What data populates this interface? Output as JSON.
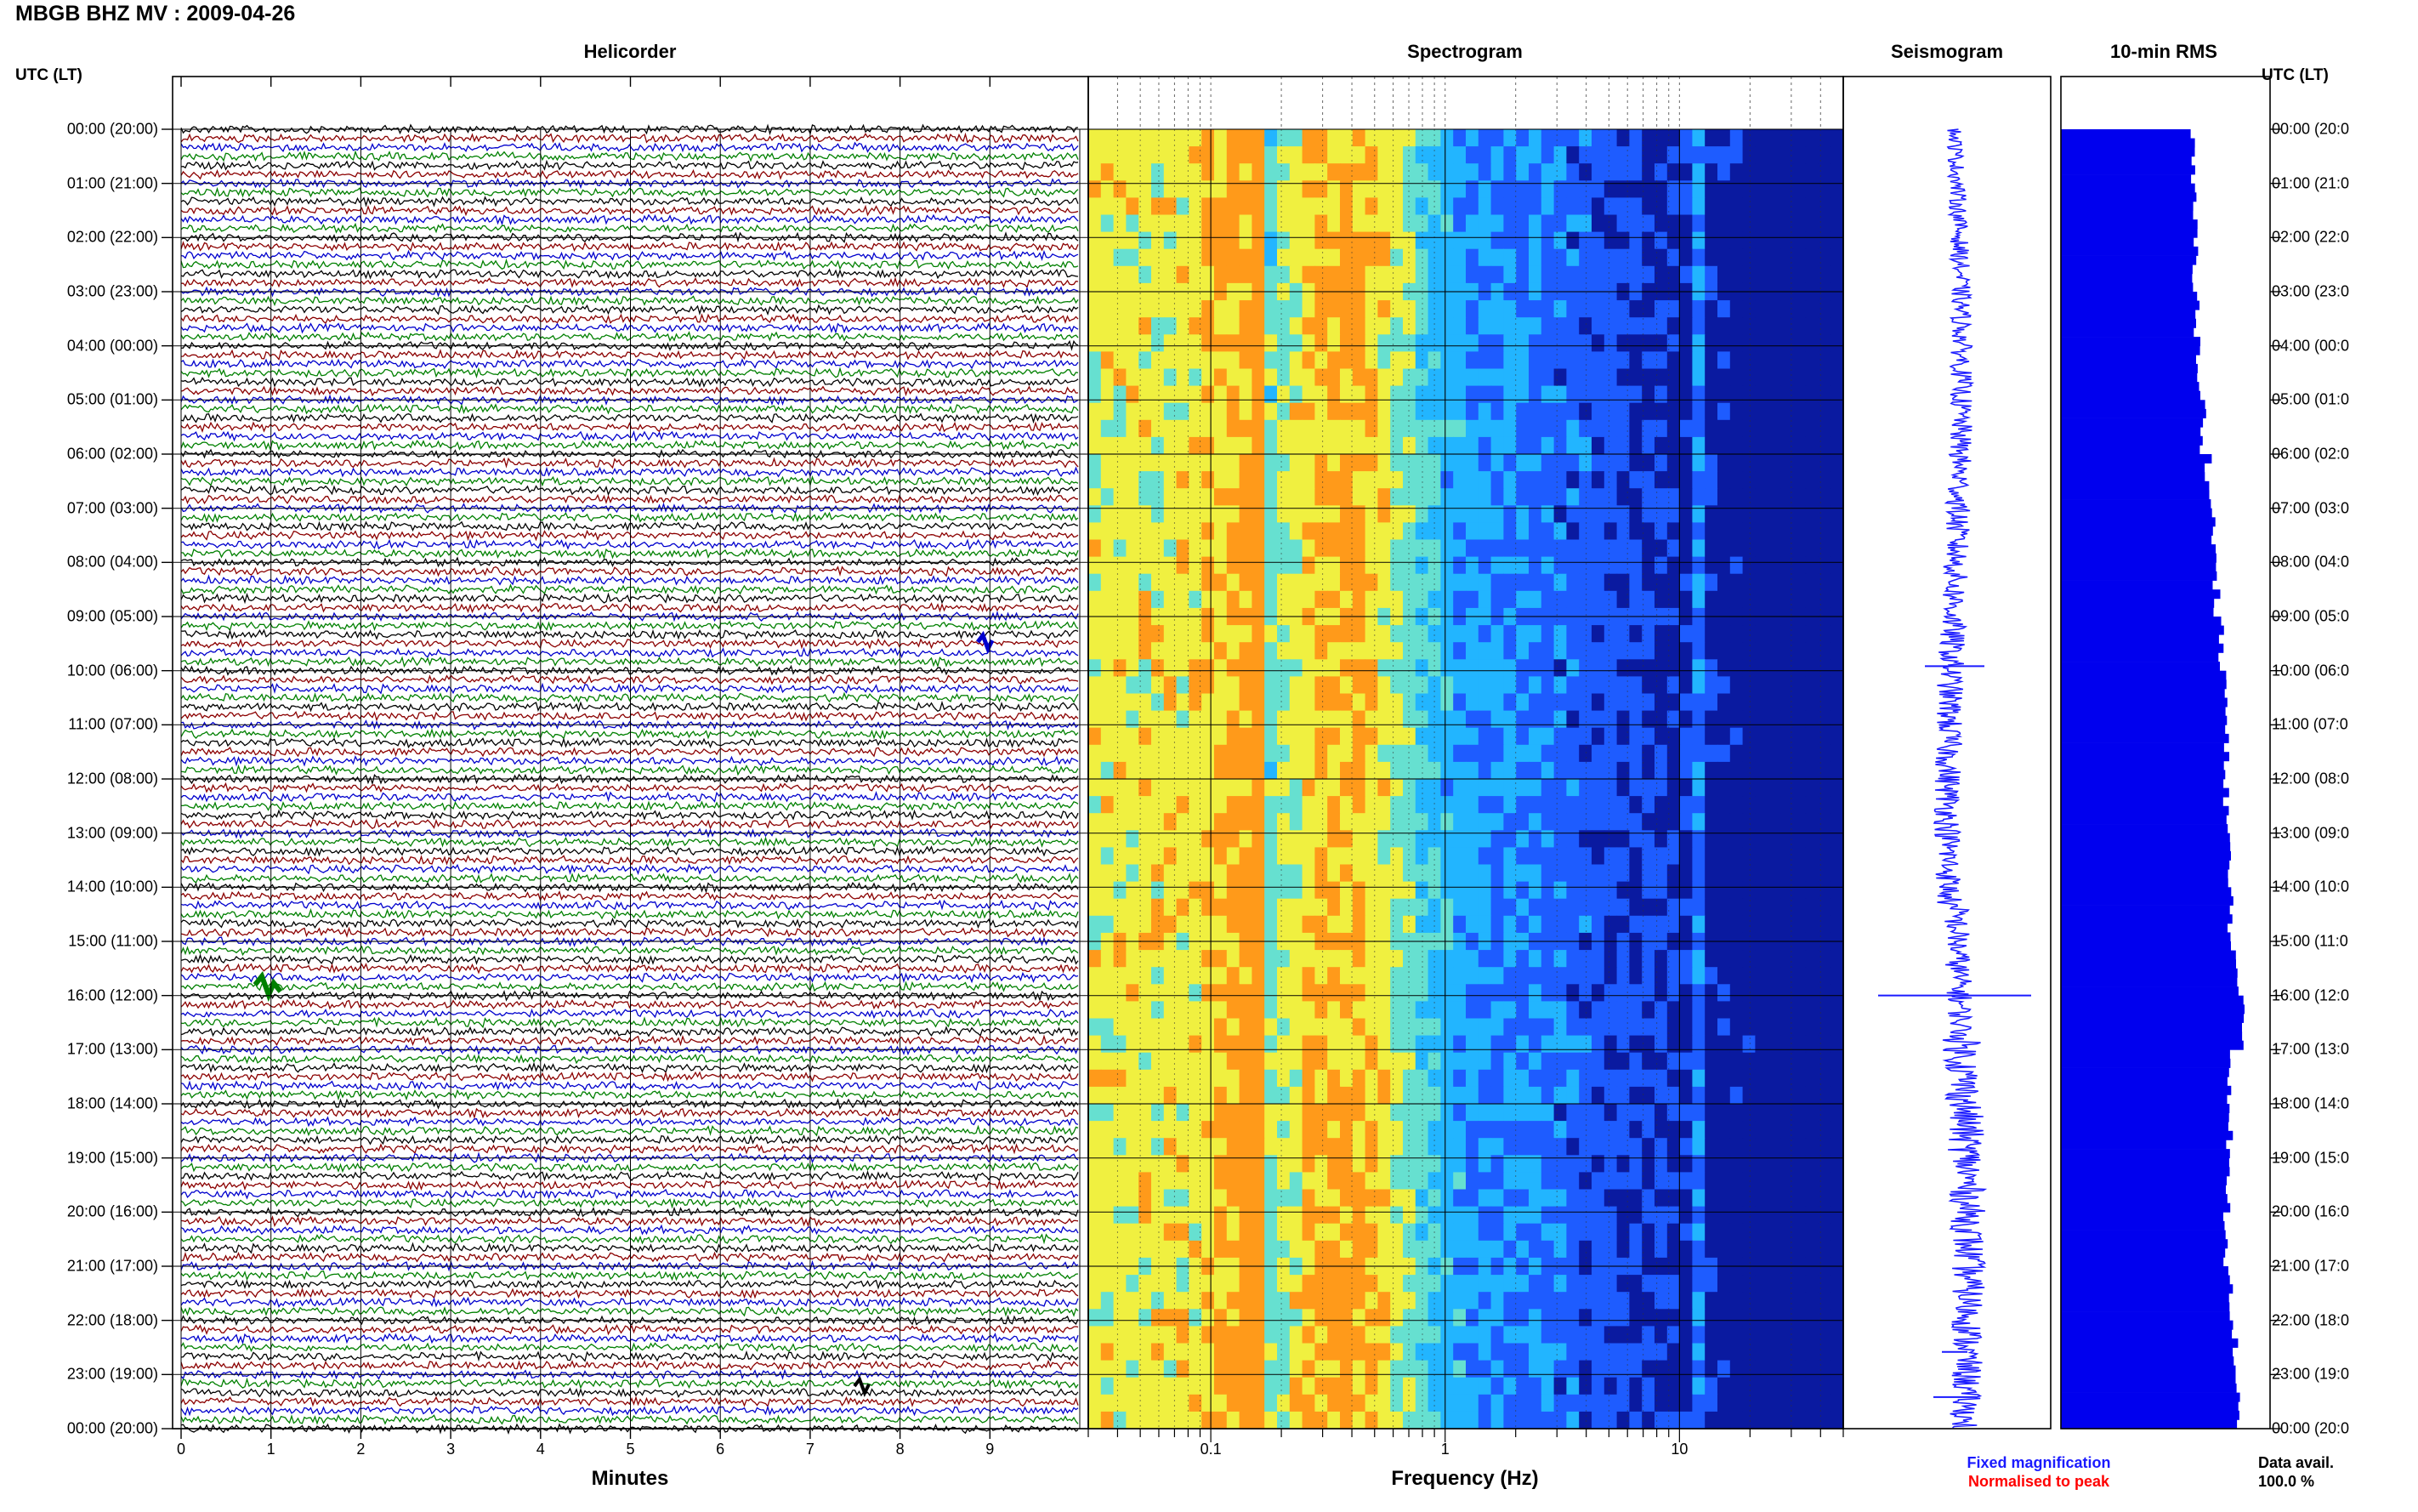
{
  "title": "MBGB BHZ MV : 2009-04-26",
  "panels": {
    "helicorder": "Helicorder",
    "spectrogram": "Spectrogram",
    "seismogram": "Seismogram",
    "rms": "10-min RMS"
  },
  "axis_header_left": "UTC (LT)",
  "axis_header_right": "UTC (LT)",
  "time_labels_left": [
    "00:00 (20:00)",
    "01:00 (21:00)",
    "02:00 (22:00)",
    "03:00 (23:00)",
    "04:00 (00:00)",
    "05:00 (01:00)",
    "06:00 (02:00)",
    "07:00 (03:00)",
    "08:00 (04:00)",
    "09:00 (05:00)",
    "10:00 (06:00)",
    "11:00 (07:00)",
    "12:00 (08:00)",
    "13:00 (09:00)",
    "14:00 (10:00)",
    "15:00 (11:00)",
    "16:00 (12:00)",
    "17:00 (13:00)",
    "18:00 (14:00)",
    "19:00 (15:00)",
    "20:00 (16:00)",
    "21:00 (17:00)",
    "22:00 (18:00)",
    "23:00 (19:00)",
    "00:00 (20:00)"
  ],
  "time_labels_right": [
    "00:00 (20:0",
    "01:00 (21:0",
    "02:00 (22:0",
    "03:00 (23:0",
    "04:00 (00:0",
    "05:00 (01:0",
    "06:00 (02:0",
    "07:00 (03:0",
    "08:00 (04:0",
    "09:00 (05:0",
    "10:00 (06:0",
    "11:00 (07:0",
    "12:00 (08:0",
    "13:00 (09:0",
    "14:00 (10:0",
    "15:00 (11:0",
    "16:00 (12:0",
    "17:00 (13:0",
    "18:00 (14:0",
    "19:00 (15:0",
    "20:00 (16:0",
    "21:00 (17:0",
    "22:00 (18:0",
    "23:00 (19:0",
    "00:00 (20:0"
  ],
  "minute_ticks": [
    "0",
    "1",
    "2",
    "3",
    "4",
    "5",
    "6",
    "7",
    "8",
    "9"
  ],
  "minutes_label": "Minutes",
  "frequency_ticks": [
    "0.1",
    "1",
    "10"
  ],
  "frequency_label": "Frequency (Hz)",
  "legend": {
    "fixed": "Fixed magnification",
    "normalised": "Normalised to peak",
    "fixed_color": "#1a1aff",
    "normalised_color": "#ff0000"
  },
  "data_avail_label": "Data avail.",
  "data_avail_value": "100.0 %",
  "chart_data": [
    {
      "type": "line",
      "name": "Helicorder",
      "xlabel": "Minutes",
      "xlim": [
        0,
        10
      ],
      "x_ticks": [
        0,
        1,
        2,
        3,
        4,
        5,
        6,
        7,
        8,
        9
      ],
      "trace_colors": [
        "#000000",
        "#8b0000",
        "#0000cd",
        "#008000"
      ],
      "lines_per_hour": 6,
      "hours": 24,
      "grid": true
    },
    {
      "type": "heatmap",
      "name": "Spectrogram",
      "xlabel": "Frequency (Hz)",
      "x_scale": "log",
      "xlim": [
        0.03,
        50
      ],
      "x_ticks": [
        0.1,
        1,
        10
      ],
      "colormap": [
        "#0a1aa0",
        "#1e5cff",
        "#22b5ff",
        "#66e0d0",
        "#f0f040",
        "#ff9a1a"
      ],
      "dominant_band_hz": [
        0.2,
        0.6
      ],
      "narrow_line_hz": 12,
      "grid": true
    },
    {
      "type": "line",
      "name": "Seismogram",
      "color": "#1a1aff",
      "spikes_utc": [
        "09:55",
        "16:00",
        "22:35",
        "23:25"
      ]
    },
    {
      "type": "bar",
      "name": "10-min RMS",
      "orientation": "horizontal",
      "color": "#0000ee",
      "hours": [
        "00:00",
        "01:00",
        "02:00",
        "03:00",
        "04:00",
        "05:00",
        "06:00",
        "07:00",
        "08:00",
        "09:00",
        "10:00",
        "11:00",
        "12:00",
        "13:00",
        "14:00",
        "15:00",
        "16:00",
        "17:00",
        "18:00",
        "19:00",
        "20:00",
        "21:00",
        "22:00",
        "23:00"
      ],
      "values": [
        1.0,
        1.02,
        1.03,
        1.04,
        1.05,
        1.09,
        1.13,
        1.17,
        1.19,
        1.22,
        1.26,
        1.26,
        1.27,
        1.28,
        1.3,
        1.33,
        1.4,
        1.3,
        1.29,
        1.27,
        1.27,
        1.31,
        1.33,
        1.36
      ],
      "xlim": [
        0,
        1.6
      ]
    }
  ]
}
